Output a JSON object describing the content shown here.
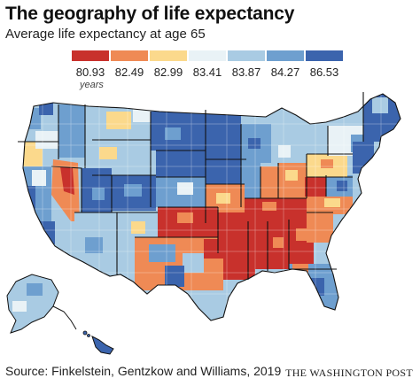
{
  "title": "The geography of life expectancy",
  "subtitle": "Average life expectancy at age 65",
  "legend": {
    "unit": "years",
    "bins": [
      {
        "value": "80.93",
        "color": "#c8312c"
      },
      {
        "value": "82.49",
        "color": "#ef8a55"
      },
      {
        "value": "82.99",
        "color": "#fbd98c"
      },
      {
        "value": "83.41",
        "color": "#e9f2f6"
      },
      {
        "value": "83.87",
        "color": "#a9cbe3"
      },
      {
        "value": "84.27",
        "color": "#6e9fcf"
      },
      {
        "value": "86.53",
        "color": "#3b64ad"
      }
    ]
  },
  "source": "Source: Finkelstein, Gentzkow and Williams, 2019",
  "credit": "THE WASHINGTON POST"
}
